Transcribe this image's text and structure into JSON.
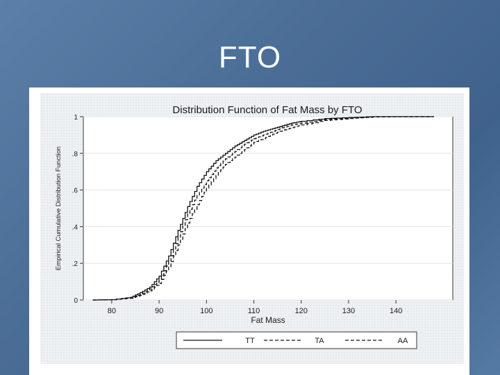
{
  "slide": {
    "title": "FTO"
  },
  "chart_data": {
    "type": "line",
    "title": "Distribution Function of Fat Mass by FTO",
    "xlabel": "Fat Mass",
    "ylabel": "Empirical Cumulative Distribution Function",
    "xlim": [
      74,
      152
    ],
    "ylim": [
      0,
      1
    ],
    "x_ticks": [
      80,
      90,
      100,
      110,
      120,
      130,
      140
    ],
    "y_ticks": [
      0,
      0.2,
      0.4,
      0.6,
      0.8,
      1
    ],
    "y_tick_labels": [
      "0",
      ".2",
      ".4",
      ".6",
      ".8",
      "1"
    ],
    "grid": true,
    "legend": "bottom",
    "series": [
      {
        "name": "TT",
        "dash": "solid",
        "x": [
          76,
          80,
          84,
          86,
          88,
          90,
          92,
          94,
          96,
          98,
          100,
          102,
          104,
          106,
          108,
          110,
          112,
          114,
          116,
          118,
          120,
          125,
          130,
          135,
          140,
          144,
          148
        ],
        "y": [
          0,
          0.002,
          0.015,
          0.04,
          0.07,
          0.13,
          0.24,
          0.38,
          0.51,
          0.62,
          0.7,
          0.76,
          0.8,
          0.84,
          0.87,
          0.9,
          0.92,
          0.935,
          0.95,
          0.965,
          0.975,
          0.99,
          0.995,
          1,
          1,
          1,
          1
        ]
      },
      {
        "name": "TA",
        "dash": "dashed",
        "x": [
          76,
          80,
          84,
          86,
          88,
          90,
          92,
          94,
          96,
          98,
          100,
          102,
          104,
          106,
          108,
          110,
          112,
          114,
          116,
          118,
          120,
          125,
          130,
          135,
          140,
          144,
          148
        ],
        "y": [
          0,
          0.002,
          0.012,
          0.03,
          0.06,
          0.11,
          0.21,
          0.34,
          0.47,
          0.57,
          0.65,
          0.72,
          0.77,
          0.81,
          0.85,
          0.88,
          0.9,
          0.92,
          0.94,
          0.955,
          0.965,
          0.985,
          0.993,
          1,
          1,
          1,
          1
        ]
      },
      {
        "name": "AA",
        "dash": "dashed",
        "x": [
          76,
          80,
          84,
          86,
          88,
          90,
          92,
          94,
          96,
          98,
          100,
          102,
          104,
          106,
          108,
          110,
          112,
          114,
          116,
          118,
          120,
          125,
          130,
          135,
          140,
          144,
          148
        ],
        "y": [
          0,
          0.002,
          0.01,
          0.025,
          0.05,
          0.09,
          0.18,
          0.3,
          0.42,
          0.52,
          0.61,
          0.68,
          0.74,
          0.78,
          0.82,
          0.86,
          0.88,
          0.905,
          0.925,
          0.94,
          0.955,
          0.98,
          0.99,
          0.998,
          1,
          1,
          1
        ]
      }
    ]
  }
}
